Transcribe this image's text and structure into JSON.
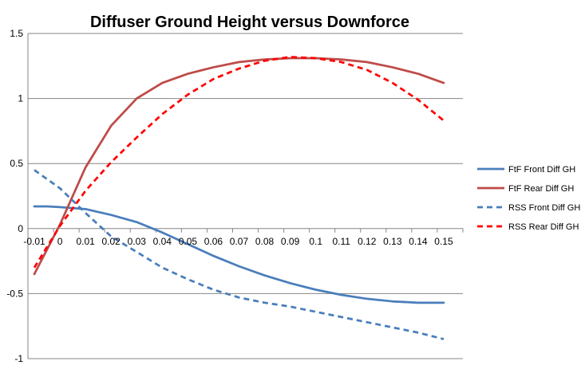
{
  "chart_data": {
    "type": "line",
    "title": "Diffuser Ground Height versus Downforce",
    "xlabel": "",
    "ylabel": "",
    "x": [
      -0.01,
      0,
      0.01,
      0.02,
      0.03,
      0.04,
      0.05,
      0.06,
      0.07,
      0.08,
      0.09,
      0.1,
      0.11,
      0.12,
      0.13,
      0.14,
      0.15
    ],
    "x_tick_labels": [
      "-0.01",
      "0",
      "0.01",
      "0.02",
      "0.03",
      "0.04",
      "0.05",
      "0.06",
      "0.07",
      "0.08",
      "0.09",
      "0.1",
      "0.11",
      "0.12",
      "0.13",
      "0.14",
      "0.15"
    ],
    "ylim": [
      -1,
      1.5
    ],
    "y_ticks": [
      -1,
      -0.5,
      0,
      0.5,
      1,
      1.5
    ],
    "y_tick_labels": [
      "-1",
      "-0.5",
      "0",
      "0.5",
      "1",
      "1.5"
    ],
    "grid": "horizontal",
    "legend_position": "right",
    "series": [
      {
        "name": "FtF Front Diff GH",
        "color": "#4a7ebb",
        "dash": "solid",
        "x": [
          -0.01,
          -0.005,
          0,
          0.01,
          0.02,
          0.03,
          0.04,
          0.05,
          0.06,
          0.07,
          0.08,
          0.09,
          0.1,
          0.11,
          0.12,
          0.13,
          0.14,
          0.15
        ],
        "values": [
          0.17,
          0.17,
          0.165,
          0.15,
          0.105,
          0.05,
          -0.03,
          -0.12,
          -0.21,
          -0.29,
          -0.36,
          -0.42,
          -0.47,
          -0.51,
          -0.54,
          -0.56,
          -0.57,
          -0.57
        ]
      },
      {
        "name": "FtF Rear Diff GH",
        "color": "#be4b48",
        "dash": "solid",
        "x": [
          -0.01,
          0,
          0.01,
          0.02,
          0.03,
          0.04,
          0.05,
          0.06,
          0.07,
          0.08,
          0.09,
          0.1,
          0.11,
          0.12,
          0.13,
          0.14,
          0.15
        ],
        "values": [
          -0.35,
          0.03,
          0.47,
          0.79,
          1.0,
          1.12,
          1.19,
          1.24,
          1.28,
          1.3,
          1.31,
          1.31,
          1.3,
          1.28,
          1.24,
          1.19,
          1.12
        ]
      },
      {
        "name": "RSS Front Diff GH",
        "color": "#4a7ebb",
        "dash": "dashed",
        "x": [
          -0.01,
          0,
          0.01,
          0.02,
          0.03,
          0.04,
          0.05,
          0.06,
          0.07,
          0.08,
          0.09,
          0.1,
          0.11,
          0.12,
          0.13,
          0.14,
          0.15
        ],
        "values": [
          0.45,
          0.31,
          0.12,
          -0.06,
          -0.18,
          -0.3,
          -0.39,
          -0.47,
          -0.53,
          -0.57,
          -0.6,
          -0.64,
          -0.68,
          -0.72,
          -0.76,
          -0.8,
          -0.85
        ]
      },
      {
        "name": "RSS Rear Diff GH",
        "color": "#ff0000",
        "dash": "dashed",
        "x": [
          -0.01,
          0,
          0.01,
          0.02,
          0.03,
          0.04,
          0.05,
          0.06,
          0.07,
          0.08,
          0.09,
          0.1,
          0.11,
          0.12,
          0.13,
          0.14,
          0.15
        ],
        "values": [
          -0.3,
          0.02,
          0.29,
          0.51,
          0.7,
          0.88,
          1.03,
          1.15,
          1.23,
          1.29,
          1.32,
          1.31,
          1.28,
          1.22,
          1.12,
          0.99,
          0.83
        ]
      }
    ]
  }
}
